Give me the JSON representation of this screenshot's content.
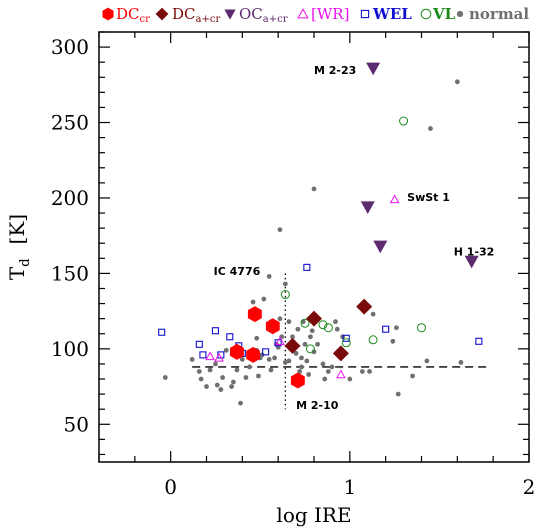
{
  "chart_data": {
    "type": "scatter",
    "xlabel": "log IRE",
    "ylabel": {
      "main": "T",
      "sub": "d",
      "unit": "[K]"
    },
    "xlim": [
      -0.4,
      2.0
    ],
    "ylim": [
      25,
      310
    ],
    "xticks": [
      0,
      1,
      2
    ],
    "yticks": [
      50,
      100,
      150,
      200,
      250,
      300
    ],
    "reference_lines": {
      "horizontal_y": 88,
      "vertical_x": 0.64
    },
    "legend": [
      {
        "key": "DC_cr",
        "text": "DC",
        "sub": "cr",
        "color": "#ff0000",
        "marker": "hexagon"
      },
      {
        "key": "DC_a+cr",
        "text": "DC",
        "sub": "a+cr",
        "color": "#7a0a0a",
        "marker": "diamond"
      },
      {
        "key": "OC_a+cr",
        "text": "OC",
        "sub": "a+cr",
        "color": "#5c2a6e",
        "marker": "triangle-down"
      },
      {
        "key": "WR",
        "text": "[WR]",
        "sub": "",
        "color": "#ee11ee",
        "marker": "triangle-open"
      },
      {
        "key": "WEL",
        "text": "WEL",
        "sub": "",
        "color": "#1010d0",
        "marker": "square-open"
      },
      {
        "key": "VL",
        "text": "VL",
        "sub": "",
        "color": "#1a8a1a",
        "marker": "circle-open"
      },
      {
        "key": "normal",
        "text": "normal",
        "sub": "",
        "color": "#707070",
        "marker": "dot"
      }
    ],
    "series": [
      {
        "name": "DC_cr",
        "points": [
          [
            0.37,
            98
          ],
          [
            0.46,
            96
          ],
          [
            0.47,
            123
          ],
          [
            0.57,
            115
          ],
          [
            0.71,
            79
          ]
        ]
      },
      {
        "name": "DC_a+cr",
        "points": [
          [
            0.68,
            102
          ],
          [
            0.8,
            120
          ],
          [
            0.95,
            97
          ],
          [
            1.08,
            128
          ]
        ]
      },
      {
        "name": "OC_a+cr",
        "points": [
          [
            1.13,
            286
          ],
          [
            1.1,
            194
          ],
          [
            1.17,
            168
          ],
          [
            1.68,
            158
          ]
        ]
      },
      {
        "name": "WR",
        "points": [
          [
            0.22,
            95
          ],
          [
            0.27,
            94
          ],
          [
            0.61,
            105
          ],
          [
            0.95,
            83
          ],
          [
            1.25,
            199
          ]
        ]
      },
      {
        "name": "WEL",
        "points": [
          [
            -0.05,
            111
          ],
          [
            0.16,
            103
          ],
          [
            0.18,
            96
          ],
          [
            0.25,
            112
          ],
          [
            0.28,
            96
          ],
          [
            0.33,
            108
          ],
          [
            0.38,
            102
          ],
          [
            0.4,
            97
          ],
          [
            0.53,
            98
          ],
          [
            0.6,
            104
          ],
          [
            0.76,
            154
          ],
          [
            0.98,
            107
          ],
          [
            1.2,
            113
          ],
          [
            1.72,
            105
          ]
        ]
      },
      {
        "name": "VL",
        "points": [
          [
            0.64,
            136
          ],
          [
            0.75,
            117
          ],
          [
            0.78,
            100
          ],
          [
            0.85,
            116
          ],
          [
            0.88,
            114
          ],
          [
            0.98,
            104
          ],
          [
            1.13,
            106
          ],
          [
            1.4,
            114
          ],
          [
            1.3,
            251
          ]
        ]
      },
      {
        "name": "normal",
        "points": [
          [
            -0.03,
            81
          ],
          [
            0.12,
            93
          ],
          [
            0.16,
            85
          ],
          [
            0.17,
            80
          ],
          [
            0.2,
            75
          ],
          [
            0.22,
            86
          ],
          [
            0.25,
            90
          ],
          [
            0.26,
            76
          ],
          [
            0.29,
            81
          ],
          [
            0.31,
            99
          ],
          [
            0.34,
            75
          ],
          [
            0.37,
            86
          ],
          [
            0.4,
            93
          ],
          [
            0.42,
            81
          ],
          [
            0.39,
            64
          ],
          [
            0.44,
            88
          ],
          [
            0.46,
            131
          ],
          [
            0.48,
            99
          ],
          [
            0.49,
            82
          ],
          [
            0.5,
            94
          ],
          [
            0.51,
            96
          ],
          [
            0.52,
            133
          ],
          [
            0.55,
            93
          ],
          [
            0.56,
            86
          ],
          [
            0.56,
            118
          ],
          [
            0.58,
            94
          ],
          [
            0.59,
            103
          ],
          [
            0.6,
            101
          ],
          [
            0.61,
            120
          ],
          [
            0.62,
            108
          ],
          [
            0.64,
            143
          ],
          [
            0.64,
            91
          ],
          [
            0.66,
            118
          ],
          [
            0.66,
            92
          ],
          [
            0.67,
            100
          ],
          [
            0.68,
            108
          ],
          [
            0.69,
            80
          ],
          [
            0.7,
            97
          ],
          [
            0.71,
            113
          ],
          [
            0.72,
            85
          ],
          [
            0.73,
            88
          ],
          [
            0.74,
            118
          ],
          [
            0.75,
            103
          ],
          [
            0.76,
            92
          ],
          [
            0.77,
            83
          ],
          [
            0.78,
            108
          ],
          [
            0.79,
            112
          ],
          [
            0.8,
            98
          ],
          [
            0.82,
            103
          ],
          [
            0.85,
            90
          ],
          [
            0.86,
            80
          ],
          [
            0.88,
            85
          ],
          [
            0.9,
            88
          ],
          [
            0.92,
            118
          ],
          [
            0.93,
            113
          ],
          [
            0.96,
            108
          ],
          [
            1.0,
            80
          ],
          [
            1.07,
            85
          ],
          [
            1.11,
            85
          ],
          [
            1.13,
            123
          ],
          [
            1.24,
            105
          ],
          [
            1.26,
            114
          ],
          [
            1.35,
            82
          ],
          [
            1.43,
            92
          ],
          [
            1.62,
            91
          ],
          [
            0.55,
            148
          ],
          [
            0.48,
            107
          ],
          [
            0.61,
            179
          ],
          [
            0.8,
            206
          ],
          [
            1.45,
            246
          ],
          [
            1.6,
            277
          ],
          [
            0.73,
            94
          ],
          [
            1.27,
            70
          ],
          [
            0.28,
            73
          ],
          [
            0.35,
            78
          ]
        ]
      }
    ],
    "annotations": [
      {
        "text": "M 2-23",
        "x": 0.8,
        "y": 282
      },
      {
        "text": "SwSt 1",
        "x": 1.32,
        "y": 198
      },
      {
        "text": "H 1-32",
        "x": 1.58,
        "y": 162
      },
      {
        "text": "IC 4776",
        "x": 0.24,
        "y": 149
      },
      {
        "text": "M 2-10",
        "x": 0.7,
        "y": 60
      }
    ]
  }
}
